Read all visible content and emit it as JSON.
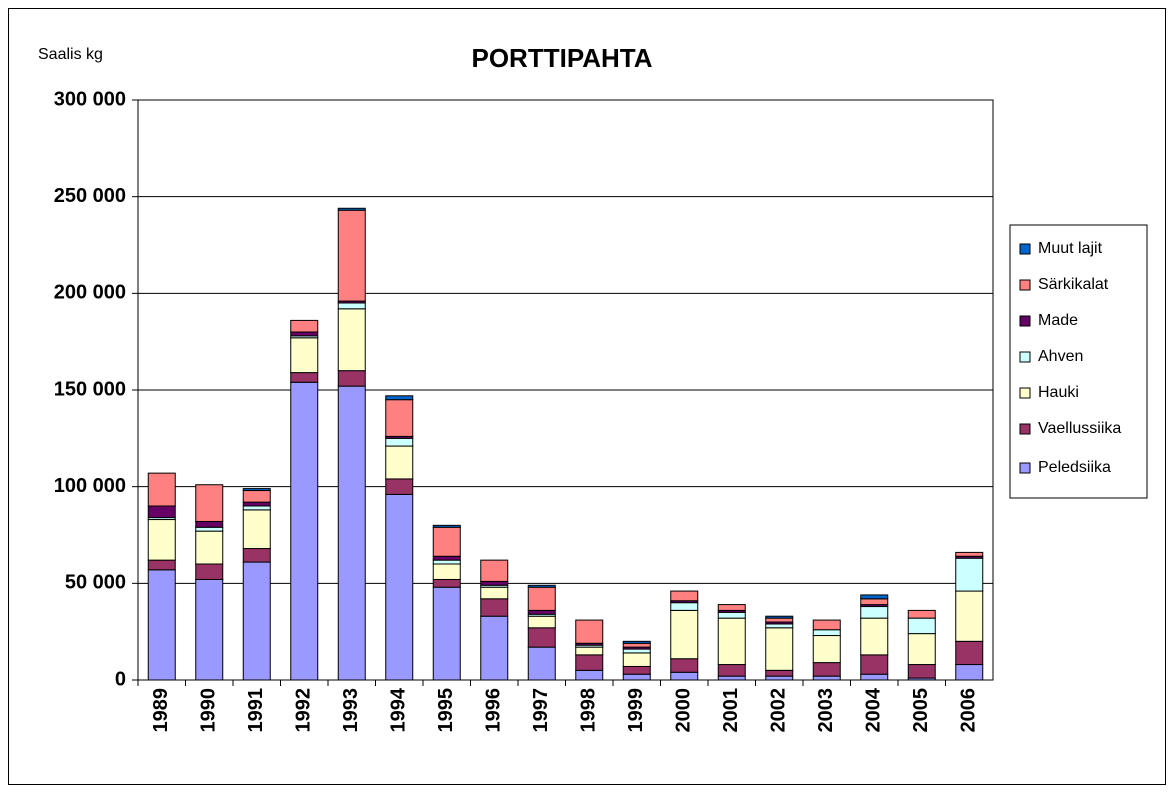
{
  "chart_data": {
    "type": "stacked-bar",
    "title": "PORTTIPAHTA",
    "y_label": "Saalis kg",
    "categories": [
      "1989",
      "1990",
      "1991",
      "1992",
      "1993",
      "1994",
      "1995",
      "1996",
      "1997",
      "1998",
      "1999",
      "2000",
      "2001",
      "2002",
      "2003",
      "2004",
      "2005",
      "2006"
    ],
    "series": [
      {
        "name": "Peledsiika",
        "color": "#9999ff",
        "values": [
          57000,
          52000,
          61000,
          154000,
          152000,
          96000,
          48000,
          33000,
          17000,
          5000,
          3000,
          4000,
          2000,
          2000,
          2000,
          3000,
          1000,
          8000
        ]
      },
      {
        "name": "Vaellussiika",
        "color": "#993366",
        "values": [
          5000,
          8000,
          7000,
          5000,
          8000,
          8000,
          4000,
          9000,
          10000,
          8000,
          4000,
          7000,
          6000,
          3000,
          7000,
          10000,
          7000,
          12000
        ]
      },
      {
        "name": "Hauki",
        "color": "#ffffcc",
        "values": [
          21000,
          17000,
          20000,
          18000,
          32000,
          17000,
          8000,
          6000,
          6000,
          4000,
          7000,
          25000,
          24000,
          22000,
          14000,
          19000,
          16000,
          26000
        ]
      },
      {
        "name": "Ahven",
        "color": "#ccffff",
        "values": [
          1000,
          2000,
          2000,
          1000,
          3000,
          4000,
          2000,
          1000,
          1000,
          1000,
          2000,
          4000,
          3000,
          2000,
          3000,
          6000,
          8000,
          17000
        ]
      },
      {
        "name": "Made",
        "color": "#660066",
        "values": [
          6000,
          3000,
          2000,
          2000,
          1000,
          1000,
          2000,
          2000,
          2000,
          1000,
          1000,
          1000,
          1000,
          1000,
          0,
          1000,
          0,
          1000
        ]
      },
      {
        "name": "Särkikalat",
        "color": "#ff8080",
        "values": [
          17000,
          19000,
          6000,
          6000,
          47000,
          19000,
          15000,
          11000,
          12000,
          12000,
          2000,
          5000,
          3000,
          2000,
          5000,
          3000,
          4000,
          2000
        ]
      },
      {
        "name": "Muut lajit",
        "color": "#0066cc",
        "values": [
          0,
          0,
          1000,
          0,
          1000,
          2000,
          1000,
          0,
          1000,
          0,
          1000,
          0,
          0,
          1000,
          0,
          2000,
          0,
          0
        ]
      }
    ],
    "ylim": [
      0,
      300000
    ],
    "yticks": [
      0,
      {
        "value": 50000,
        "label": "50 000"
      },
      {
        "value": 100000,
        "label": "100 000"
      },
      {
        "value": 150000,
        "label": "150 000"
      },
      {
        "value": 200000,
        "label": "200 000"
      },
      {
        "value": 250000,
        "label": "250 000"
      },
      {
        "value": 300000,
        "label": "300 000"
      }
    ],
    "grid": true,
    "legend": "right"
  }
}
